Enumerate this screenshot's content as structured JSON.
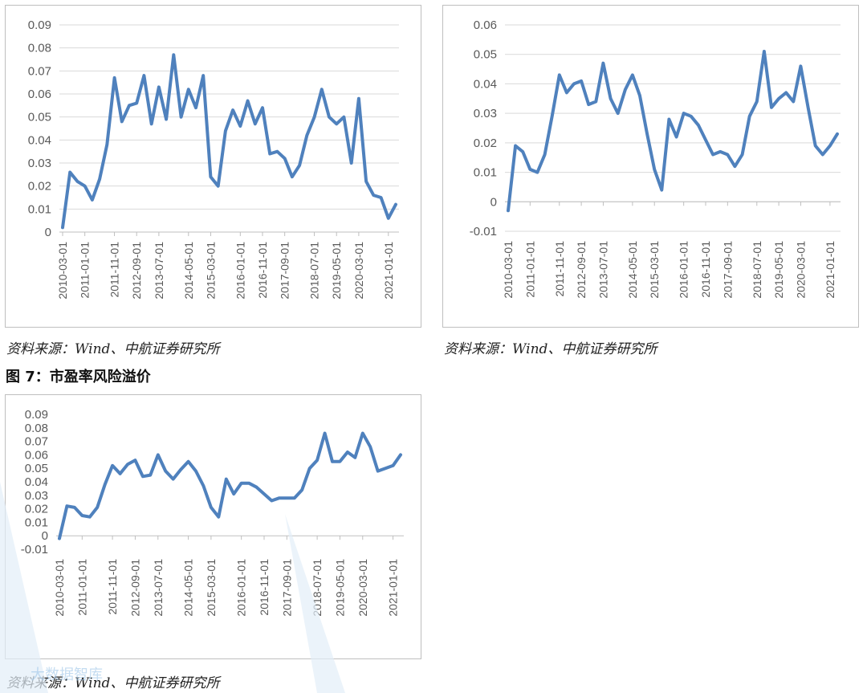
{
  "chart_data": [
    {
      "type": "line",
      "title": "",
      "xlabel": "",
      "ylabel": "",
      "ylim": [
        0,
        0.09
      ],
      "yticks": [
        "0.09",
        "0.08",
        "0.07",
        "0.06",
        "0.05",
        "0.04",
        "0.03",
        "0.02",
        "0.01",
        "0"
      ],
      "xticks": [
        "2010-03-01",
        "2011-01-01",
        "2011-11-01",
        "2012-09-01",
        "2013-07-01",
        "2014-05-01",
        "2015-03-01",
        "2016-01-01",
        "2016-11-01",
        "2017-09-01",
        "2018-07-01",
        "2019-05-01",
        "2020-03-01",
        "2021-01-01"
      ],
      "grid": true,
      "legend": "none",
      "color": "#4f81bd",
      "series": [
        {
          "values": [
            0.002,
            0.026,
            0.022,
            0.02,
            0.014,
            0.023,
            0.038,
            0.067,
            0.048,
            0.055,
            0.056,
            0.068,
            0.047,
            0.063,
            0.049,
            0.077,
            0.05,
            0.062,
            0.054,
            0.068,
            0.024,
            0.02,
            0.044,
            0.053,
            0.046,
            0.057,
            0.047,
            0.054,
            0.034,
            0.035,
            0.032,
            0.024,
            0.029,
            0.042,
            0.05,
            0.062,
            0.05,
            0.047,
            0.05,
            0.03,
            0.058,
            0.022,
            0.016,
            0.015,
            0.006,
            0.012
          ]
        }
      ],
      "source": "资料来源：Wind、中航证券研究所"
    },
    {
      "type": "line",
      "title": "",
      "xlabel": "",
      "ylabel": "",
      "ylim": [
        -0.01,
        0.06
      ],
      "yticks": [
        "0.06",
        "0.05",
        "0.04",
        "0.03",
        "0.02",
        "0.01",
        "0",
        "-0.01"
      ],
      "xticks": [
        "2010-03-01",
        "2011-01-01",
        "2011-11-01",
        "2012-09-01",
        "2013-07-01",
        "2014-05-01",
        "2015-03-01",
        "2016-01-01",
        "2016-11-01",
        "2017-09-01",
        "2018-07-01",
        "2019-05-01",
        "2020-03-01",
        "2021-01-01"
      ],
      "grid": true,
      "legend": "none",
      "color": "#4f81bd",
      "series": [
        {
          "values": [
            -0.003,
            0.019,
            0.017,
            0.011,
            0.01,
            0.016,
            0.029,
            0.043,
            0.037,
            0.04,
            0.041,
            0.033,
            0.034,
            0.047,
            0.035,
            0.03,
            0.038,
            0.043,
            0.036,
            0.023,
            0.011,
            0.004,
            0.028,
            0.022,
            0.03,
            0.029,
            0.026,
            0.021,
            0.016,
            0.017,
            0.016,
            0.012,
            0.016,
            0.029,
            0.034,
            0.051,
            0.032,
            0.035,
            0.037,
            0.034,
            0.046,
            0.032,
            0.019,
            0.016,
            0.019,
            0.023
          ]
        }
      ],
      "source": "资料来源：Wind、中航证券研究所"
    },
    {
      "type": "line",
      "title": "图 7：市盈率风险溢价",
      "xlabel": "",
      "ylabel": "",
      "ylim": [
        -0.01,
        0.09
      ],
      "yticks": [
        "0.09",
        "0.08",
        "0.07",
        "0.06",
        "0.05",
        "0.04",
        "0.03",
        "0.02",
        "0.01",
        "0",
        "-0.01"
      ],
      "xticks": [
        "2010-03-01",
        "2011-01-01",
        "2011-11-01",
        "2012-09-01",
        "2013-07-01",
        "2014-05-01",
        "2015-03-01",
        "2016-01-01",
        "2016-11-01",
        "2017-09-01",
        "2018-07-01",
        "2019-05-01",
        "2020-03-01",
        "2021-01-01"
      ],
      "grid": false,
      "legend": "none",
      "color": "#4f81bd",
      "series": [
        {
          "values": [
            -0.002,
            0.022,
            0.021,
            0.015,
            0.014,
            0.021,
            0.038,
            0.052,
            0.046,
            0.053,
            0.056,
            0.044,
            0.045,
            0.06,
            0.048,
            0.042,
            0.049,
            0.055,
            0.048,
            0.037,
            0.021,
            0.014,
            0.042,
            0.031,
            0.039,
            0.039,
            0.036,
            0.031,
            0.026,
            0.028,
            0.028,
            0.028,
            0.034,
            0.05,
            0.056,
            0.076,
            0.055,
            0.055,
            0.062,
            0.058,
            0.076,
            0.066,
            0.048,
            0.05,
            0.052,
            0.06
          ]
        }
      ],
      "source": "资料来源：Wind、中航证券研究所"
    }
  ],
  "watermark": {
    "text": "大数据智库",
    "color": "#9ec6e8"
  }
}
